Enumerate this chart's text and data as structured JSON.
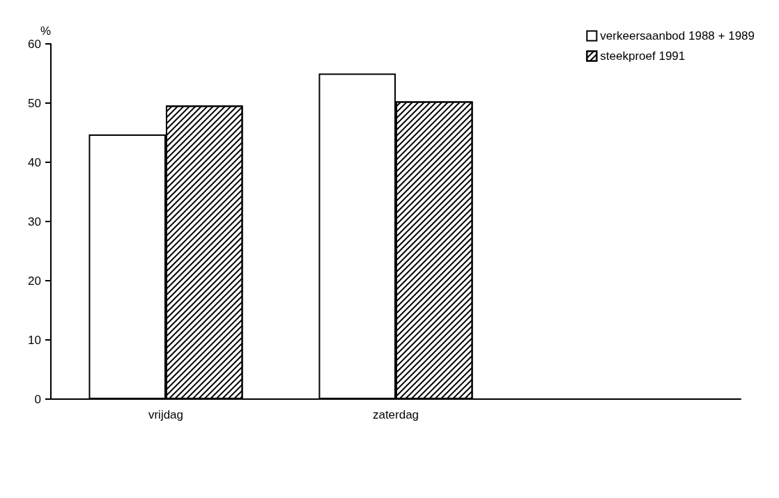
{
  "chart_data": {
    "type": "bar",
    "ylabel": "%",
    "categories": [
      "vrijdag",
      "zaterdag",
      null
    ],
    "series": [
      {
        "name": "verkeersaanbod 1988 + 1989",
        "color": "#ffffff",
        "values": [
          44.7,
          55,
          null
        ]
      },
      {
        "name": "steekproef 1991",
        "color": "#000000",
        "values": [
          49.6,
          50.3,
          null
        ]
      }
    ],
    "ylim": [
      0,
      60
    ],
    "yticks": [
      0,
      10,
      20,
      30,
      40,
      50,
      60
    ],
    "grid": false,
    "legend": "top right"
  }
}
